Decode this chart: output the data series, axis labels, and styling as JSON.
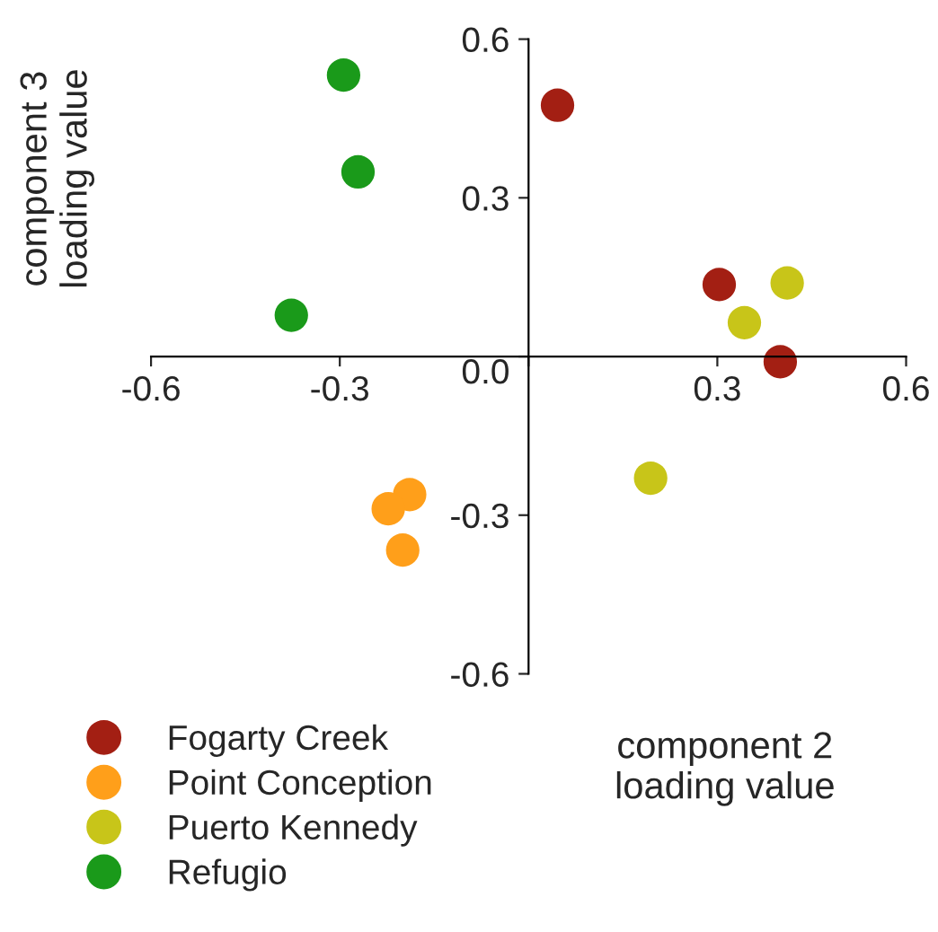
{
  "chart_data": {
    "type": "scatter",
    "xlabel": "component 2\nloading value",
    "ylabel": "component 3\nloading value",
    "xlim": [
      -0.6,
      0.6
    ],
    "ylim": [
      -0.6,
      0.6
    ],
    "xticks": [
      -0.6,
      -0.3,
      {
        "value": 0,
        "label": null
      },
      0.3,
      0.6
    ],
    "yticks": [
      -0.6,
      -0.3,
      {
        "value": 0,
        "label": "0.0"
      },
      0.3,
      0.6
    ],
    "grid": false,
    "legend": "bottom left",
    "marker": "circle",
    "series": [
      {
        "name": "Fogarty Creek",
        "color": "#a31f13",
        "x": [
          0.046,
          0.303,
          0.4
        ],
        "values": [
          0.475,
          0.136,
          -0.01
        ]
      },
      {
        "name": "Point Conception",
        "color": "#ff9f1a",
        "x": [
          -0.189,
          -0.223,
          -0.2
        ],
        "values": [
          -0.261,
          -0.288,
          -0.366
        ]
      },
      {
        "name": "Puerto Kennedy",
        "color": "#c8c519",
        "x": [
          0.411,
          0.343,
          0.194
        ],
        "values": [
          0.139,
          0.064,
          -0.23
        ]
      },
      {
        "name": "Refugio",
        "color": "#1a9a1a",
        "x": [
          -0.294,
          -0.271,
          -0.377
        ],
        "values": [
          0.532,
          0.349,
          0.078
        ]
      }
    ]
  }
}
